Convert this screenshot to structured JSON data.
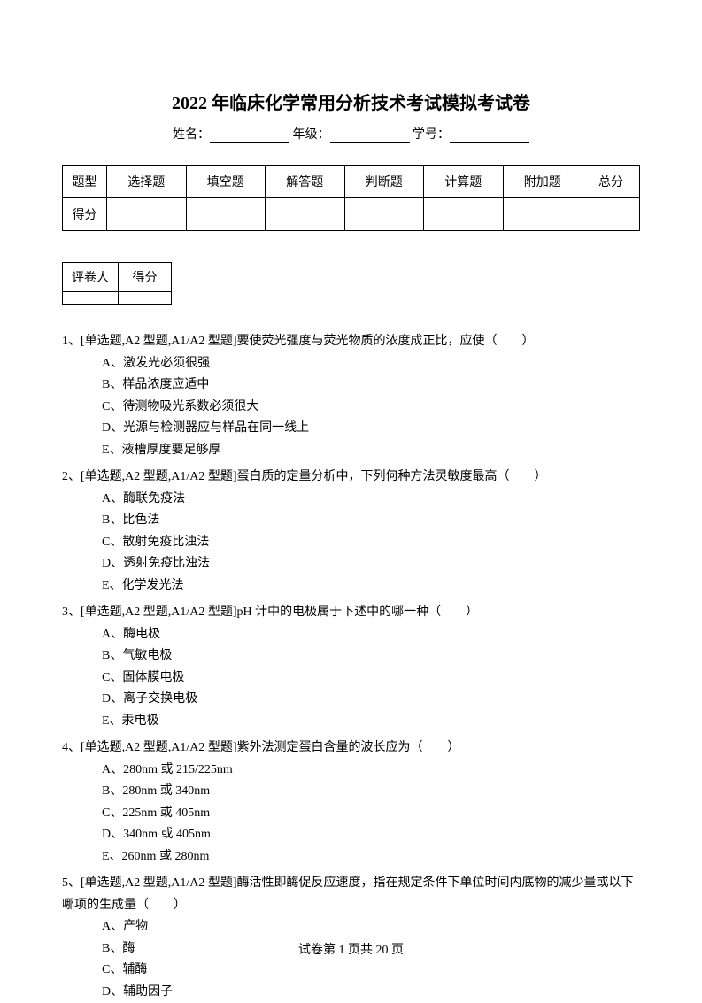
{
  "title": "2022 年临床化学常用分析技术考试模拟考试卷",
  "info": {
    "name_label": "姓名：",
    "grade_label": " 年级：",
    "id_label": " 学号："
  },
  "score_table": {
    "row1_label": "题型",
    "columns": [
      "选择题",
      "填空题",
      "解答题",
      "判断题",
      "计算题",
      "附加题",
      "总分"
    ],
    "row2_label": "得分"
  },
  "grader_table": {
    "col1": "评卷人",
    "col2": "得分"
  },
  "questions": [
    {
      "num": "1、",
      "text": "[单选题,A2 型题,A1/A2 型题]要使荧光强度与荧光物质的浓度成正比，应使（　　）",
      "options": [
        "A、激发光必须很强",
        "B、样品浓度应适中",
        "C、待测物吸光系数必须很大",
        "D、光源与检测器应与样品在同一线上",
        "E、液槽厚度要足够厚"
      ]
    },
    {
      "num": "2、",
      "text": "[单选题,A2 型题,A1/A2 型题]蛋白质的定量分析中，下列何种方法灵敏度最高（　　）",
      "options": [
        "A、酶联免疫法",
        "B、比色法",
        "C、散射免疫比浊法",
        "D、透射免疫比浊法",
        "E、化学发光法"
      ]
    },
    {
      "num": "3、",
      "text": "[单选题,A2 型题,A1/A2 型题]pH 计中的电极属于下述中的哪一种（　　）",
      "options": [
        "A、酶电极",
        "B、气敏电极",
        "C、固体膜电极",
        "D、离子交换电极",
        "E、汞电极"
      ]
    },
    {
      "num": "4、",
      "text": "[单选题,A2 型题,A1/A2 型题]紫外法测定蛋白含量的波长应为（　　）",
      "options": [
        "A、280nm 或 215/225nm",
        "B、280nm 或 340nm",
        "C、225nm 或 405nm",
        "D、340nm 或 405nm",
        "E、260nm 或 280nm"
      ]
    },
    {
      "num": "5、",
      "text": "[单选题,A2 型题,A1/A2 型题]酶活性即酶促反应速度，指在规定条件下单位时间内底物的减少量或以下哪项的生成量（　　）",
      "options": [
        "A、产物",
        "B、酶",
        "C、辅酶",
        "D、辅助因子"
      ]
    }
  ],
  "footer": "试卷第 1 页共 20 页"
}
